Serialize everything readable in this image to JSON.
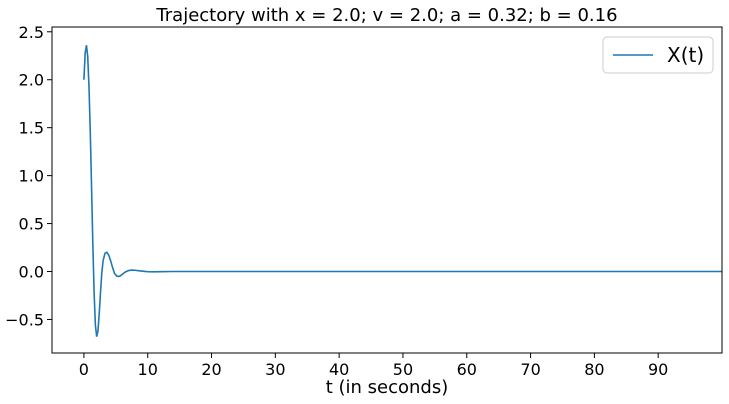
{
  "chart_data": {
    "type": "line",
    "title": "Trajectory with x = 2.0; v = 2.0; a = 0.32; b = 0.16",
    "xlabel": "t (in seconds)",
    "ylabel": "",
    "xlim": [
      -5,
      100
    ],
    "ylim": [
      -0.85,
      2.55
    ],
    "xticks": [
      0,
      10,
      20,
      30,
      40,
      50,
      60,
      70,
      80,
      90
    ],
    "yticks": [
      -0.5,
      0.0,
      0.5,
      1.0,
      1.5,
      2.0,
      2.5
    ],
    "ytick_labels": [
      "−0.5",
      "0.0",
      "0.5",
      "1.0",
      "1.5",
      "2.0",
      "2.5"
    ],
    "grid": false,
    "legend_position": "top-right",
    "series": [
      {
        "name": "X(t)",
        "color": "#1f77b4",
        "x": [
          0,
          0.2,
          0.4,
          0.6,
          0.8,
          1.0,
          1.2,
          1.4,
          1.6,
          1.8,
          2.0,
          2.2,
          2.4,
          2.6,
          2.8,
          3.0,
          3.3,
          3.6,
          3.9,
          4.2,
          4.5,
          4.8,
          5.2,
          5.6,
          6.0,
          6.5,
          7.0,
          7.5,
          8.0,
          9.0,
          10.0,
          11.0,
          12.0,
          14.0,
          17.0,
          20.0,
          30.0,
          40.0,
          50.0,
          60.0,
          70.0,
          80.0,
          90.0,
          100.0
        ],
        "y": [
          2.0,
          2.28,
          2.36,
          2.24,
          1.92,
          1.45,
          0.88,
          0.28,
          -0.22,
          -0.56,
          -0.68,
          -0.62,
          -0.44,
          -0.22,
          -0.02,
          0.11,
          0.19,
          0.2,
          0.17,
          0.11,
          0.04,
          -0.02,
          -0.05,
          -0.05,
          -0.03,
          -0.005,
          0.01,
          0.015,
          0.013,
          0.005,
          -0.002,
          -0.003,
          -0.002,
          0.0,
          0.0,
          0.0,
          0.0,
          0.0,
          0.0,
          0.0,
          0.0,
          0.0,
          0.0,
          0.0
        ]
      }
    ]
  }
}
